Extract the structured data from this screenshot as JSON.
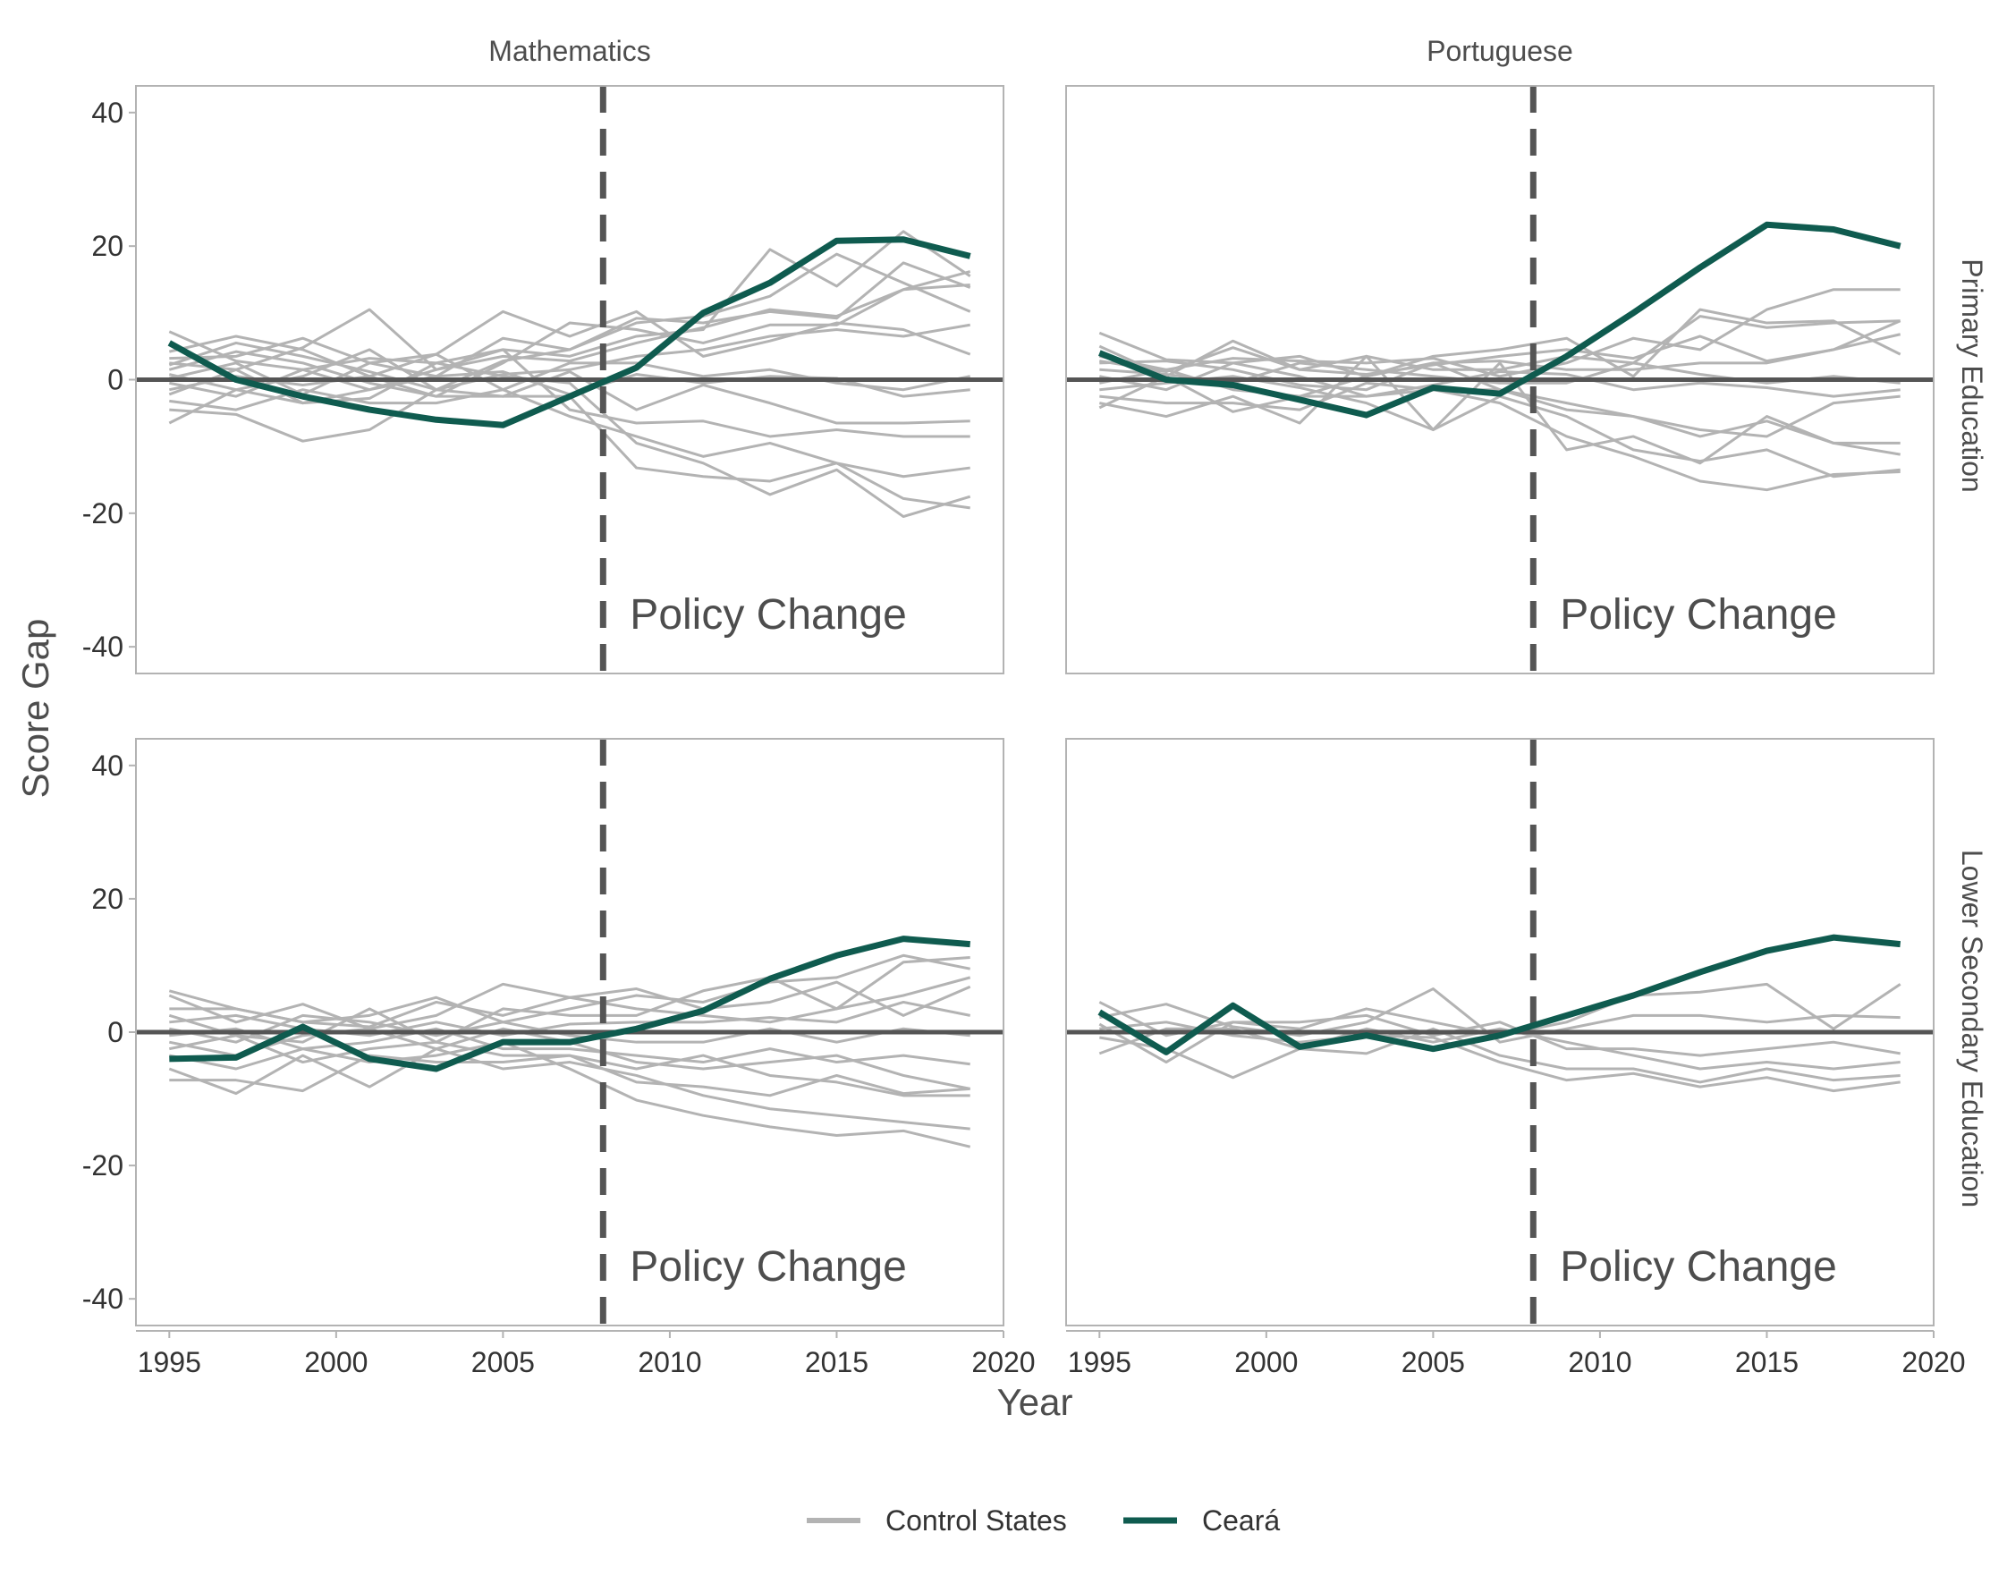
{
  "colors": {
    "control": "#b3b3b3",
    "ceara": "#0f5b4f",
    "refline": "#555555",
    "panel_border": "#b3b3b3",
    "axis": "#b3b3b3"
  },
  "chart_data": {
    "type": "line",
    "facets": {
      "columns": [
        "Mathematics",
        "Portuguese"
      ],
      "rows": [
        "Primary Education",
        "Lower Secondary Education"
      ]
    },
    "xlabel": "Year",
    "ylabel": "Score Gap",
    "xlim": [
      1994,
      2020
    ],
    "ylim": [
      -44,
      44
    ],
    "xticks": [
      1995,
      2000,
      2005,
      2010,
      2015,
      2020
    ],
    "yticks": [
      -40,
      -20,
      0,
      20,
      40
    ],
    "xticklabels": [
      "1995",
      "2000",
      "2005",
      "2010",
      "2015",
      "2020"
    ],
    "yticklabels": [
      "-40",
      "-20",
      "0",
      "20",
      "40"
    ],
    "x": [
      1995,
      1997,
      1999,
      2001,
      2003,
      2005,
      2007,
      2009,
      2011,
      2013,
      2015,
      2017,
      2019
    ],
    "policy_year": 2008,
    "annotation": "Policy Change",
    "reference_y": 0,
    "legend": {
      "position": "bottom",
      "items": [
        {
          "label": "Control States",
          "color": "#b3b3b3"
        },
        {
          "label": "Ceará",
          "color": "#0f5b4f"
        }
      ]
    },
    "panels": [
      {
        "row": "Primary Education",
        "column": "Mathematics",
        "ceara": [
          5.5,
          0,
          -2.5,
          -4.5,
          -6,
          -6.8,
          -2.5,
          1.8,
          10,
          14.5,
          20.8,
          21,
          18.5
        ],
        "controls": [
          [
            7.2,
            2.8,
            1.5,
            3.2,
            2.5,
            4.5,
            3.5,
            6.5,
            7.5,
            19.5,
            14,
            22.2,
            15.5
          ],
          [
            4.2,
            6.5,
            4.5,
            0.5,
            3.8,
            10.2,
            6.5,
            10.2,
            3.5,
            5.8,
            8.5,
            7.5,
            3.8
          ],
          [
            3.2,
            3.5,
            6.2,
            2.5,
            0.5,
            6.2,
            4.5,
            8.5,
            9.5,
            12.5,
            18.8,
            14.5,
            10.2
          ],
          [
            2.5,
            1.5,
            4.8,
            10.5,
            1.5,
            3.5,
            2.8,
            5.5,
            7.8,
            10.5,
            9.5,
            13.5,
            16.2
          ],
          [
            1.5,
            4.2,
            2.5,
            -0.5,
            -2.5,
            2.5,
            8.5,
            7.5,
            5.5,
            8.2,
            8.2,
            13.5,
            14.2
          ],
          [
            0.8,
            -1.5,
            0.5,
            4.5,
            -1.5,
            0.8,
            1.5,
            3.5,
            4.5,
            6.5,
            7.5,
            6.5,
            8.2
          ],
          [
            0.2,
            2.5,
            -2.2,
            2.5,
            3.8,
            -1.5,
            2.5,
            2.5,
            0.5,
            1.5,
            -0.5,
            -1.5,
            0.5
          ],
          [
            -0.5,
            -2.5,
            1.5,
            -1.5,
            0.5,
            1.2,
            -2.2,
            0.8,
            -0.5,
            0.5,
            0.2,
            -2.5,
            -1.5
          ],
          [
            -1.5,
            0.5,
            -0.8,
            0.5,
            -2.5,
            -2.5,
            1.2,
            -4.5,
            -0.8,
            -3.5,
            -6.5,
            -6.5,
            -6.2
          ],
          [
            -2.2,
            1.5,
            -3.5,
            -1.5,
            1.5,
            4.5,
            -4.5,
            -6.5,
            -6.2,
            -8.5,
            -7.5,
            -8.5,
            -8.5
          ],
          [
            -3.2,
            -4.5,
            -1.5,
            -3.5,
            -3.5,
            -1.5,
            -5.5,
            -8.5,
            -11.5,
            -9.5,
            -12.5,
            -14.5,
            -13.2
          ],
          [
            -4.5,
            -5.2,
            -9.2,
            -7.5,
            -1.5,
            -2.5,
            -2.5,
            -13.2,
            -14.5,
            -15.2,
            -12.5,
            -17.8,
            -19.2
          ],
          [
            -6.5,
            -1.5,
            -3.5,
            -2.8,
            2.5,
            0.5,
            -0.5,
            -9.5,
            -12.5,
            -17.2,
            -13.5,
            -20.5,
            -17.5
          ],
          [
            2.2,
            5.5,
            3.5,
            1.2,
            -1.5,
            2.8,
            4.5,
            9.2,
            8.5,
            10.2,
            9.2,
            17.5,
            13.8
          ]
        ]
      },
      {
        "row": "Primary Education",
        "column": "Portuguese",
        "ceara": [
          4,
          0,
          -0.8,
          -3,
          -5.3,
          -1.2,
          -2.1,
          3.5,
          10,
          16.8,
          23.2,
          22.5,
          20
        ],
        "controls": [
          [
            7,
            3,
            2.5,
            3.5,
            0.5,
            3.5,
            4.5,
            6.2,
            0.5,
            10.5,
            8.5,
            8.8,
            3.8
          ],
          [
            5,
            0.5,
            5.8,
            1.5,
            3.5,
            1.5,
            1.5,
            3.5,
            2.5,
            9.5,
            7.8,
            8.5,
            8.8
          ],
          [
            3.5,
            1.5,
            3.2,
            2.8,
            2.5,
            3.2,
            0.5,
            2.5,
            6.2,
            4.5,
            10.5,
            13.5,
            13.5
          ],
          [
            2.5,
            2.8,
            1.5,
            -0.8,
            -1.5,
            2.5,
            2.8,
            1.5,
            1.5,
            2.5,
            2.5,
            4.5,
            6.8
          ],
          [
            1.5,
            0.8,
            -0.5,
            2.5,
            1.5,
            0.5,
            -0.5,
            -0.5,
            2.5,
            0.8,
            -0.5,
            0.5,
            -0.5
          ],
          [
            0.5,
            -1.5,
            2.5,
            0.5,
            -2.5,
            -0.8,
            1.2,
            0.8,
            -1.5,
            -0.5,
            -1.2,
            -2.5,
            -1.5
          ],
          [
            -0.5,
            1.5,
            -1.5,
            -2.5,
            0.5,
            2.5,
            -1.5,
            -3.5,
            -5.5,
            -8.5,
            -6.2,
            -9.5,
            -9.5
          ],
          [
            -1.5,
            -0.5,
            0.5,
            -1.2,
            -3.5,
            -7.5,
            -2.5,
            -5.5,
            -10.5,
            -12.2,
            -10.5,
            -14.5,
            -13.5
          ],
          [
            -2.5,
            -3.5,
            -3.5,
            -4.5,
            -0.5,
            -1.5,
            -3.5,
            -8.5,
            -11.5,
            -15.2,
            -16.5,
            -14.2,
            -13.8
          ],
          [
            -3.5,
            -5.5,
            -2.5,
            -6.5,
            3.5,
            -7.5,
            2.5,
            -10.5,
            -8.5,
            -12.5,
            -5.5,
            -9.5,
            -11.2
          ],
          [
            -4.2,
            0.5,
            -4.8,
            -2.5,
            -2.5,
            -1.5,
            -1.5,
            -4.5,
            -5.5,
            -7.5,
            -8.5,
            -3.5,
            -2.5
          ],
          [
            2.8,
            1.2,
            4.8,
            1.5,
            0.8,
            2.2,
            3.5,
            4.5,
            3.2,
            6.5,
            2.8,
            4.5,
            8.8
          ]
        ]
      },
      {
        "row": "Lower Secondary Education",
        "column": "Mathematics",
        "ceara": [
          -4,
          -3.8,
          0.8,
          -4,
          -5.5,
          -1.5,
          -1.5,
          0.5,
          3.2,
          8,
          11.5,
          14,
          13.2
        ],
        "controls": [
          [
            6.2,
            3.5,
            1.5,
            2.5,
            5.2,
            1.5,
            3.5,
            5.5,
            4.5,
            7.5,
            8.2,
            11.5,
            9.5
          ],
          [
            5.5,
            1.5,
            4.2,
            0.5,
            2.5,
            7.2,
            5.2,
            6.5,
            3.5,
            4.5,
            7.5,
            2.5,
            6.8
          ],
          [
            2.5,
            -0.5,
            -1.5,
            3.5,
            -1.5,
            3.5,
            2.5,
            2.5,
            6.2,
            8.2,
            3.5,
            10.5,
            11.2
          ],
          [
            1.5,
            2.5,
            0.5,
            -0.5,
            1.5,
            -0.5,
            1.2,
            1.5,
            1.5,
            2.2,
            1.5,
            4.5,
            2.5
          ],
          [
            0.5,
            -1.5,
            2.5,
            1.5,
            -0.5,
            1.5,
            -0.5,
            -1.5,
            -1.5,
            0.5,
            -1.5,
            0.5,
            -0.5
          ],
          [
            -0.5,
            0.5,
            -2.5,
            -1.5,
            0.5,
            -2.5,
            -2.5,
            -3.5,
            -4.5,
            -2.5,
            -4.5,
            -3.5,
            -4.8
          ],
          [
            -1.5,
            -3.5,
            -0.5,
            0.5,
            -2.5,
            0.5,
            -1.5,
            -4.5,
            -5.5,
            -4.5,
            -3.5,
            -6.5,
            -8.5
          ],
          [
            -2.5,
            -0.5,
            -4.5,
            -2.5,
            -1.5,
            -3.5,
            -3.5,
            -5.5,
            -3.5,
            -6.5,
            -7.5,
            -9.5,
            -9.5
          ],
          [
            -3.5,
            -5.5,
            -2.5,
            -4.5,
            -3.5,
            -1.5,
            -5.5,
            -10.2,
            -12.5,
            -14.2,
            -15.5,
            -14.8,
            -17.2
          ],
          [
            -5.5,
            -9.2,
            -3.5,
            -8.2,
            -2.5,
            -5.5,
            -4.5,
            -6.5,
            -9.5,
            -11.5,
            -12.5,
            -13.5,
            -14.5
          ],
          [
            -7.2,
            -7.2,
            -8.8,
            -3.5,
            -4.5,
            -4.5,
            -3.5,
            -7.5,
            -8.2,
            -9.5,
            -6.5,
            -9.2,
            -8.5
          ],
          [
            3.5,
            3.5,
            1.5,
            0.8,
            4.5,
            2.5,
            5.2,
            3.5,
            2.5,
            1.5,
            3.5,
            5.5,
            8.2
          ]
        ]
      },
      {
        "row": "Lower Secondary Education",
        "column": "Portuguese",
        "ceara": [
          3,
          -3,
          4,
          -2.2,
          -0.5,
          -2.5,
          -0.5,
          2.5,
          5.5,
          9,
          12.2,
          14.2,
          13.2
        ],
        "controls": [
          [
            4.5,
            -0.5,
            1.5,
            0.5,
            3.5,
            1.5,
            -0.5,
            1.5,
            5.5,
            6,
            7.2,
            0.5,
            7.2
          ],
          [
            2.2,
            4.2,
            0.8,
            -0.5,
            1.5,
            6.5,
            -1.5,
            0.5,
            2.5,
            2.5,
            1.5,
            2.5,
            2.2
          ],
          [
            1.2,
            -4.5,
            1.5,
            1.5,
            2.5,
            -0.5,
            1.5,
            -2.5,
            -2.5,
            -3.5,
            -2.5,
            -1.5,
            -3.2
          ],
          [
            0.5,
            1.5,
            -0.5,
            -1.5,
            -0.5,
            -0.8,
            -4.5,
            -7.2,
            -6.2,
            -8.2,
            -6.8,
            -8.8,
            -7.5
          ],
          [
            -0.8,
            -2.5,
            -6.8,
            -2.5,
            -3.2,
            0.5,
            -3.5,
            -5.5,
            -5.5,
            -7.5,
            -5.5,
            -7.2,
            -6.5
          ],
          [
            -3.2,
            0.5,
            0.5,
            -2.5,
            0.5,
            -1.5,
            0.5,
            -1.5,
            -3.5,
            -5.5,
            -4.5,
            -5.5,
            -4.5
          ]
        ]
      }
    ]
  }
}
